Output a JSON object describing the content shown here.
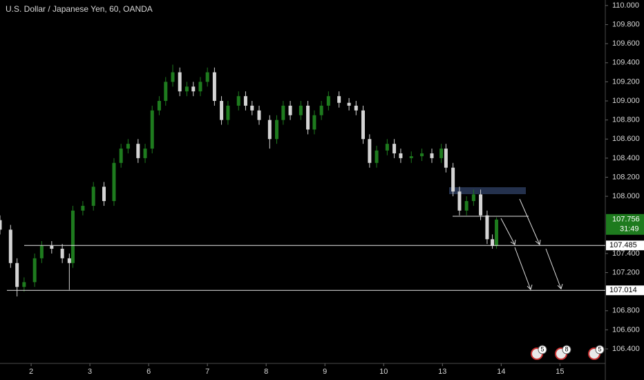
{
  "chart_data": {
    "type": "candlestick",
    "title": "U.S. Dollar / Japanese Yen, 60, OANDA",
    "up_color": "#1e7b1e",
    "down_color": "#d4d4d4",
    "x": [
      -0.53,
      -0.35,
      -0.24,
      -0.12,
      0.06,
      0.18,
      0.35,
      0.53,
      0.65,
      0.71,
      0.88,
      1.06,
      1.24,
      1.41,
      1.53,
      1.65,
      1.82,
      1.94,
      2.06,
      2.18,
      2.29,
      2.41,
      2.53,
      2.65,
      2.76,
      2.88,
      3.0,
      3.12,
      3.24,
      3.35,
      3.53,
      3.65,
      3.76,
      3.88,
      4.06,
      4.18,
      4.29,
      4.41,
      4.59,
      4.71,
      4.82,
      4.94,
      5.06,
      5.24,
      5.41,
      5.53,
      5.65,
      5.76,
      5.88,
      6.06,
      6.18,
      6.29,
      6.47,
      6.65,
      6.82,
      6.98,
      7.06,
      7.18,
      7.29,
      7.41,
      7.53,
      7.65,
      7.76,
      7.85,
      7.92
    ],
    "open": [
      107.75,
      107.65,
      107.3,
      107.05,
      107.1,
      107.35,
      107.48,
      107.45,
      107.35,
      107.3,
      107.85,
      107.9,
      108.1,
      107.95,
      108.35,
      108.5,
      108.55,
      108.4,
      108.5,
      108.9,
      109.0,
      109.2,
      109.3,
      109.1,
      109.15,
      109.1,
      109.2,
      109.3,
      109.0,
      108.8,
      108.95,
      109.05,
      108.95,
      108.9,
      108.8,
      108.6,
      108.8,
      108.95,
      108.85,
      108.95,
      108.7,
      108.85,
      108.95,
      109.05,
      108.98,
      108.95,
      108.9,
      108.6,
      108.35,
      108.48,
      108.55,
      108.45,
      108.4,
      108.42,
      108.45,
      108.4,
      108.5,
      108.3,
      108.05,
      107.85,
      107.95,
      108.02,
      107.8,
      107.55,
      107.48
    ],
    "high": [
      107.8,
      107.7,
      107.35,
      107.15,
      107.4,
      107.53,
      107.53,
      107.5,
      107.4,
      107.9,
      107.95,
      108.15,
      108.15,
      108.4,
      108.55,
      108.6,
      108.6,
      108.55,
      108.95,
      109.05,
      109.25,
      109.38,
      109.35,
      109.2,
      109.2,
      109.25,
      109.35,
      109.35,
      109.05,
      109.0,
      109.1,
      109.1,
      109.0,
      108.95,
      108.85,
      108.85,
      109.0,
      109.0,
      109.0,
      109.0,
      108.9,
      109.0,
      109.1,
      109.1,
      109.03,
      109.0,
      108.95,
      108.65,
      108.53,
      108.6,
      108.6,
      108.5,
      108.47,
      108.5,
      108.5,
      108.55,
      108.55,
      108.35,
      108.1,
      108.0,
      108.07,
      108.07,
      107.85,
      107.6,
      107.78
    ],
    "low": [
      107.6,
      107.25,
      106.95,
      107.0,
      107.05,
      107.3,
      107.4,
      107.3,
      107.02,
      107.25,
      107.8,
      107.85,
      107.9,
      107.9,
      108.3,
      108.45,
      108.35,
      108.35,
      108.45,
      108.85,
      108.95,
      109.15,
      109.05,
      109.05,
      109.05,
      109.05,
      109.15,
      108.95,
      108.75,
      108.75,
      108.9,
      108.9,
      108.85,
      108.75,
      108.5,
      108.55,
      108.75,
      108.8,
      108.8,
      108.65,
      108.65,
      108.8,
      108.9,
      108.93,
      108.9,
      108.85,
      108.55,
      108.3,
      108.3,
      108.43,
      108.4,
      108.35,
      108.35,
      108.37,
      108.35,
      108.35,
      108.25,
      108.0,
      107.8,
      107.8,
      107.9,
      107.75,
      107.5,
      107.45,
      107.45
    ],
    "close": [
      107.65,
      107.3,
      107.05,
      107.1,
      107.35,
      107.48,
      107.45,
      107.35,
      107.3,
      107.85,
      107.9,
      108.1,
      107.95,
      108.35,
      108.5,
      108.55,
      108.4,
      108.5,
      108.9,
      109.0,
      109.2,
      109.3,
      109.1,
      109.15,
      109.1,
      109.2,
      109.3,
      109.0,
      108.8,
      108.95,
      109.05,
      108.95,
      108.9,
      108.8,
      108.6,
      108.8,
      108.95,
      108.85,
      108.95,
      108.7,
      108.85,
      108.95,
      109.05,
      108.98,
      108.95,
      108.9,
      108.6,
      108.35,
      108.48,
      108.55,
      108.45,
      108.4,
      108.42,
      108.45,
      108.4,
      108.5,
      108.3,
      108.05,
      107.85,
      107.95,
      108.02,
      107.8,
      107.55,
      107.48,
      107.756
    ],
    "xlim": [
      -0.53,
      9.76
    ],
    "xticks": [
      {
        "value": 0,
        "label": "2"
      },
      {
        "value": 1,
        "label": "3"
      },
      {
        "value": 2,
        "label": "6"
      },
      {
        "value": 3,
        "label": "7"
      },
      {
        "value": 4,
        "label": "8"
      },
      {
        "value": 5,
        "label": "9"
      },
      {
        "value": 6,
        "label": "10"
      },
      {
        "value": 7,
        "label": "13"
      },
      {
        "value": 8,
        "label": "14"
      },
      {
        "value": 9,
        "label": "15"
      }
    ],
    "ylim": [
      106.34,
      110.06
    ],
    "yticks": [
      {
        "value": 110,
        "label": "110.000"
      },
      {
        "value": 109.8,
        "label": "109.800"
      },
      {
        "value": 109.6,
        "label": "109.600"
      },
      {
        "value": 109.4,
        "label": "109.400"
      },
      {
        "value": 109.2,
        "label": "109.200"
      },
      {
        "value": 109,
        "label": "109.000"
      },
      {
        "value": 108.8,
        "label": "108.800"
      },
      {
        "value": 108.6,
        "label": "108.600"
      },
      {
        "value": 108.4,
        "label": "108.400"
      },
      {
        "value": 108.2,
        "label": "108.200"
      },
      {
        "value": 108,
        "label": "108.000"
      },
      {
        "value": 107.4,
        "label": "107.400"
      },
      {
        "value": 107.2,
        "label": "107.200"
      },
      {
        "value": 106.8,
        "label": "106.800"
      },
      {
        "value": 106.6,
        "label": "106.600"
      },
      {
        "value": 106.4,
        "label": "106.400"
      }
    ],
    "levels": [
      107.485,
      107.014
    ],
    "last_price": 107.756,
    "countdown": "31:49",
    "events": [
      5,
      8,
      5
    ]
  }
}
